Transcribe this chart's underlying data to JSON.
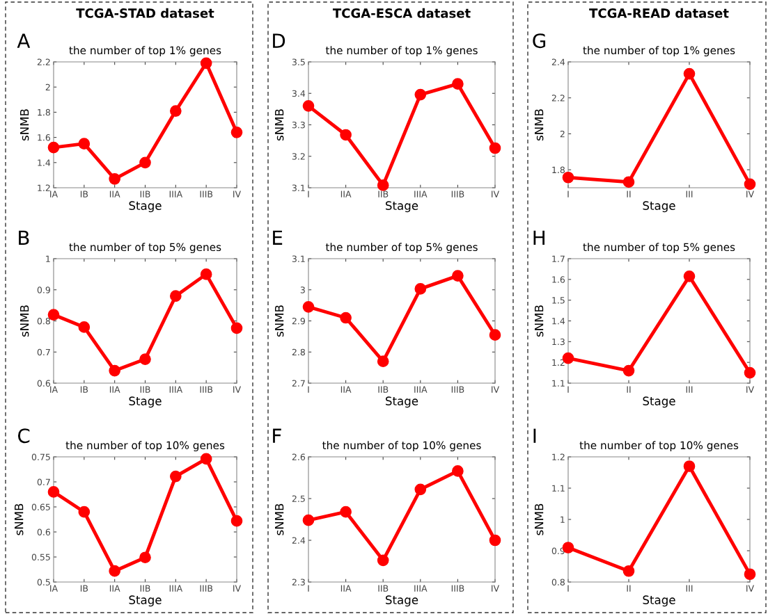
{
  "chart_data": [
    {
      "type": "line",
      "title": "the number of top 1% genes",
      "xlabel": "Stage",
      "ylabel": "sNMB",
      "annotations": [
        "TCGA-STAD dataset",
        "A"
      ],
      "categories": [
        "IA",
        "IB",
        "IIA",
        "IIB",
        "IIIA",
        "IIIB",
        "IV"
      ],
      "series": [
        {
          "color": "#ff0000",
          "values": [
            1.52,
            1.55,
            1.27,
            1.4,
            1.81,
            2.19,
            1.64
          ]
        }
      ],
      "ylim": [
        1.2,
        2.2
      ],
      "yticks": [
        1.2,
        1.4,
        1.6,
        1.8,
        2,
        2.2
      ],
      "marker": "circle",
      "line_style": "solid",
      "grid": false,
      "legend": false
    },
    {
      "type": "line",
      "title": "the number of top 5% genes",
      "xlabel": "Stage",
      "ylabel": "sNMB",
      "annotations": [
        "B"
      ],
      "categories": [
        "IA",
        "IB",
        "IIA",
        "IIB",
        "IIIA",
        "IIIB",
        "IV"
      ],
      "series": [
        {
          "color": "#ff0000",
          "values": [
            0.82,
            0.78,
            0.64,
            0.677,
            0.88,
            0.95,
            0.777
          ]
        }
      ],
      "ylim": [
        0.6,
        1
      ],
      "yticks": [
        0.6,
        0.7,
        0.8,
        0.9,
        1
      ],
      "marker": "circle",
      "line_style": "solid",
      "grid": false,
      "legend": false
    },
    {
      "type": "line",
      "title": "the number of top 10% genes",
      "xlabel": "Stage",
      "ylabel": "sNMB",
      "annotations": [
        "C"
      ],
      "categories": [
        "IA",
        "IB",
        "IIA",
        "IIB",
        "IIIA",
        "IIIB",
        "IV"
      ],
      "series": [
        {
          "color": "#ff0000",
          "values": [
            0.68,
            0.64,
            0.522,
            0.549,
            0.711,
            0.746,
            0.622
          ]
        }
      ],
      "ylim": [
        0.5,
        0.75
      ],
      "yticks": [
        0.5,
        0.55,
        0.6,
        0.65,
        0.7,
        0.75
      ],
      "marker": "circle",
      "line_style": "solid",
      "grid": false,
      "legend": false
    },
    {
      "type": "line",
      "title": "the number of top 1% genes",
      "xlabel": "Stage",
      "ylabel": "sNMB",
      "annotations": [
        "TCGA-ESCA dataset",
        "D"
      ],
      "categories": [
        "I",
        "IIA",
        "IIB",
        "IIIA",
        "IIIB",
        "IV"
      ],
      "series": [
        {
          "color": "#ff0000",
          "values": [
            3.36,
            3.268,
            3.108,
            3.396,
            3.43,
            3.226
          ]
        }
      ],
      "ylim": [
        3.1,
        3.5
      ],
      "yticks": [
        3.1,
        3.2,
        3.3,
        3.4,
        3.5
      ],
      "marker": "circle",
      "line_style": "solid",
      "grid": false,
      "legend": false
    },
    {
      "type": "line",
      "title": "the number of top 5% genes",
      "xlabel": "Stage",
      "ylabel": "sNMB",
      "annotations": [
        "E"
      ],
      "categories": [
        "I",
        "IIA",
        "IIB",
        "IIIA",
        "IIIB",
        "IV"
      ],
      "series": [
        {
          "color": "#ff0000",
          "values": [
            2.945,
            2.91,
            2.77,
            3.003,
            3.045,
            2.855
          ]
        }
      ],
      "ylim": [
        2.7,
        3.1
      ],
      "yticks": [
        2.7,
        2.8,
        2.9,
        3,
        3.1
      ],
      "marker": "circle",
      "line_style": "solid",
      "grid": false,
      "legend": false
    },
    {
      "type": "line",
      "title": "the number of top 10% genes",
      "xlabel": "Stage",
      "ylabel": "sNMB",
      "annotations": [
        "F"
      ],
      "categories": [
        "I",
        "IIA",
        "IIB",
        "IIIA",
        "IIIB",
        "IV"
      ],
      "series": [
        {
          "color": "#ff0000",
          "values": [
            2.448,
            2.468,
            2.352,
            2.522,
            2.566,
            2.4
          ]
        }
      ],
      "ylim": [
        2.3,
        2.6
      ],
      "yticks": [
        2.3,
        2.4,
        2.5,
        2.6
      ],
      "marker": "circle",
      "line_style": "solid",
      "grid": false,
      "legend": false
    },
    {
      "type": "line",
      "title": "the number of top 1% genes",
      "xlabel": "Stage",
      "ylabel": "sNMB",
      "annotations": [
        "TCGA-READ dataset",
        "G"
      ],
      "categories": [
        "I",
        "II",
        "III",
        "IV"
      ],
      "series": [
        {
          "color": "#ff0000",
          "values": [
            1.757,
            1.732,
            2.334,
            1.72
          ]
        }
      ],
      "ylim": [
        1.7,
        2.4
      ],
      "yticks": [
        1.8,
        2,
        2.2,
        2.4
      ],
      "marker": "circle",
      "line_style": "solid",
      "grid": false,
      "legend": false
    },
    {
      "type": "line",
      "title": "the number of top 5% genes",
      "xlabel": "Stage",
      "ylabel": "sNMB",
      "annotations": [
        "H"
      ],
      "categories": [
        "I",
        "II",
        "III",
        "IV"
      ],
      "series": [
        {
          "color": "#ff0000",
          "values": [
            1.22,
            1.16,
            1.615,
            1.15
          ]
        }
      ],
      "ylim": [
        1.1,
        1.7
      ],
      "yticks": [
        1.1,
        1.2,
        1.3,
        1.4,
        1.5,
        1.6,
        1.7
      ],
      "marker": "circle",
      "line_style": "solid",
      "grid": false,
      "legend": false
    },
    {
      "type": "line",
      "title": "the number of top 10% genes",
      "xlabel": "Stage",
      "ylabel": "sNMB",
      "annotations": [
        "I"
      ],
      "categories": [
        "I",
        "II",
        "III",
        "IV"
      ],
      "series": [
        {
          "color": "#ff0000",
          "values": [
            0.91,
            0.835,
            1.17,
            0.825
          ]
        }
      ],
      "ylim": [
        0.8,
        1.2
      ],
      "yticks": [
        0.8,
        0.9,
        1,
        1.1,
        1.2
      ],
      "marker": "circle",
      "line_style": "solid",
      "grid": false,
      "legend": false
    }
  ]
}
